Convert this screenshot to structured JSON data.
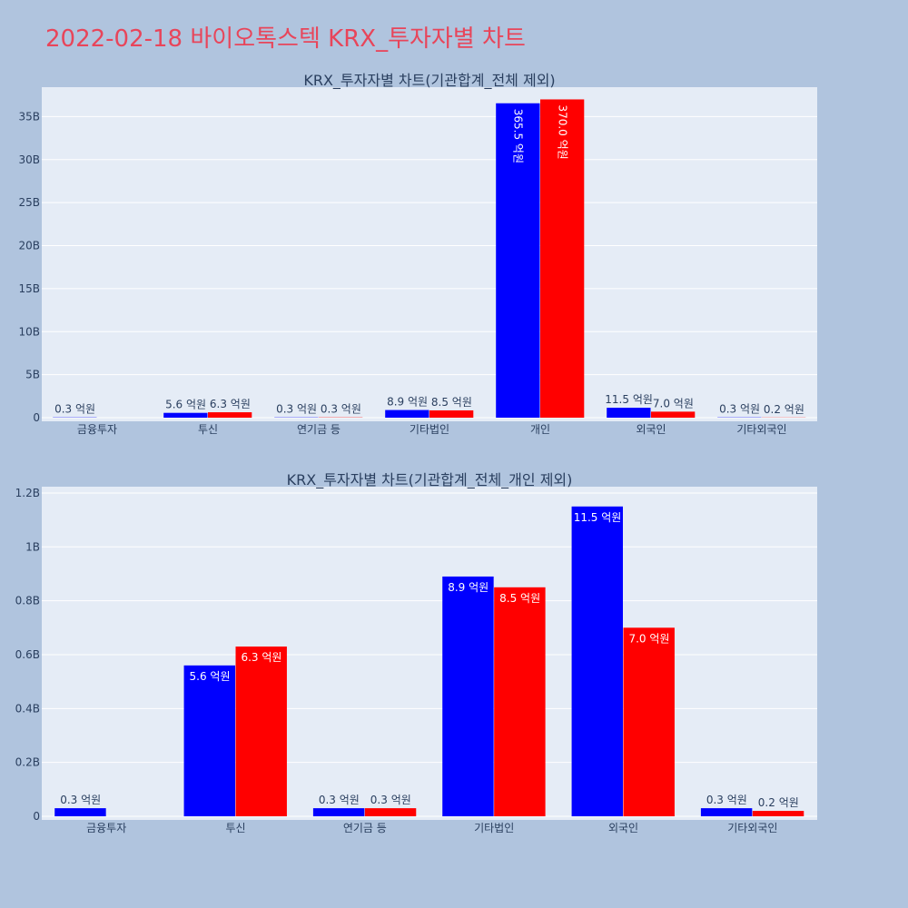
{
  "title": "2022-02-18 바이오톡스텍 KRX_투자자별 차트",
  "colors": {
    "paper": "#b0c4de",
    "plot": "#e5ecf6",
    "grid": "#ffffff",
    "title": "#e8455a",
    "series_a": "#0000ff",
    "series_b": "#ff0000",
    "text": "#2a3f5f"
  },
  "chart_data": [
    {
      "type": "bar",
      "title": "KRX_투자자별 차트(기관합계_전체 제외)",
      "categories": [
        "금융투자",
        "투신",
        "연기금 등",
        "기타법인",
        "개인",
        "외국인",
        "기타외국인"
      ],
      "series": [
        {
          "color": "#0000ff",
          "values": [
            30000000,
            560000000,
            30000000,
            890000000,
            36550000000,
            1150000000,
            30000000
          ],
          "labels": [
            "0.3 억원",
            "5.6 억원",
            "0.3 억원",
            "8.9 억원",
            "365.5 억원",
            "11.5 억원",
            "0.3 억원"
          ]
        },
        {
          "color": "#ff0000",
          "values": [
            0,
            630000000,
            30000000,
            850000000,
            37000000000,
            700000000,
            20000000
          ],
          "labels": [
            "",
            "6.3 억원",
            "0.3 억원",
            "8.5 억원",
            "370.0 억원",
            "7.0 억원",
            "0.2 억원"
          ]
        }
      ],
      "ylim": [
        0,
        38000000000
      ],
      "yticks": [
        0,
        5000000000,
        10000000000,
        15000000000,
        20000000000,
        25000000000,
        30000000000,
        35000000000
      ],
      "ytick_labels": [
        "0",
        "5B",
        "10B",
        "15B",
        "20B",
        "25B",
        "30B",
        "35B"
      ],
      "grid": true,
      "legend": "none"
    },
    {
      "type": "bar",
      "title": "KRX_투자자별 차트(기관합계_전체_개인 제외)",
      "categories": [
        "금융투자",
        "투신",
        "연기금 등",
        "기타법인",
        "외국인",
        "기타외국인"
      ],
      "series": [
        {
          "color": "#0000ff",
          "values": [
            30000000,
            560000000,
            30000000,
            890000000,
            1150000000,
            30000000
          ],
          "labels": [
            "0.3 억원",
            "5.6 억원",
            "0.3 억원",
            "8.9 억원",
            "11.5 억원",
            "0.3 억원"
          ]
        },
        {
          "color": "#ff0000",
          "values": [
            0,
            630000000,
            30000000,
            850000000,
            700000000,
            20000000
          ],
          "labels": [
            "",
            "6.3 억원",
            "0.3 억원",
            "8.5 억원",
            "7.0 억원",
            "0.2 억원"
          ]
        }
      ],
      "ylim": [
        0,
        1210000000
      ],
      "yticks": [
        0,
        200000000,
        400000000,
        600000000,
        800000000,
        1000000000,
        1200000000
      ],
      "ytick_labels": [
        "0",
        "0.2B",
        "0.4B",
        "0.6B",
        "0.8B",
        "1B",
        "1.2B"
      ],
      "grid": true,
      "legend": "none"
    }
  ]
}
